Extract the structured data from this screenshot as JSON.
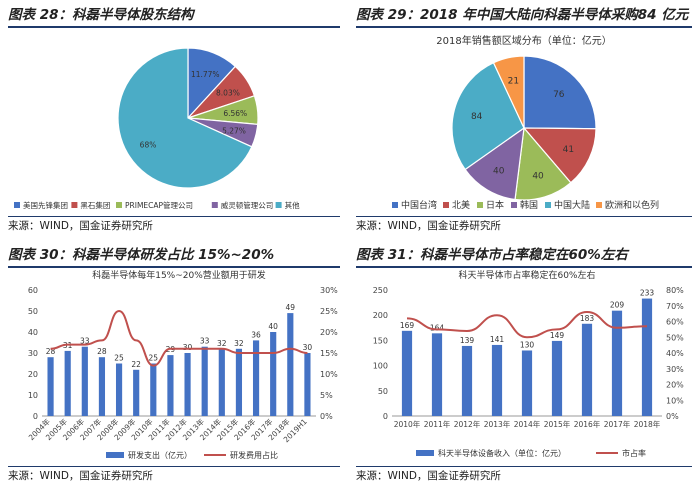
{
  "colors": {
    "blue": "#4472c4",
    "red": "#c0504d",
    "green": "#9bbb59",
    "purple": "#8064a2",
    "teal": "#4bacc6",
    "orange": "#f79646",
    "line": "#c0504d"
  },
  "panels": {
    "p1": {
      "title": "图表 28：科磊半导体股东结构",
      "source": "来源：WIND，国金证券研究所"
    },
    "p2": {
      "title": "图表 29：2018 年中国大陆向科磊半导体采购84 亿元",
      "source": "来源：WIND，国金证券研究所"
    },
    "p3": {
      "title": "图表 30：科磊半导体研发占比 15%~20%",
      "source": "来源：WIND，国金证券研究所"
    },
    "p4": {
      "title": "图表 31：科磊半导体市占率稳定在60%左右",
      "source": "来源：WIND，国金证券研究所"
    }
  },
  "chart_data": [
    {
      "type": "pie",
      "title": "",
      "labels": [
        "美国先锋集团",
        "黑石集团",
        "PRIMECAP管理公司",
        "威灵顿管理公司",
        "其他"
      ],
      "values": [
        11.77,
        8.03,
        6.56,
        5.27,
        68
      ],
      "value_labels": [
        "11.77%",
        "8.03%",
        "6.56%",
        "5.27%",
        "68%"
      ],
      "colors": [
        "#4472c4",
        "#c0504d",
        "#9bbb59",
        "#8064a2",
        "#4bacc6"
      ],
      "legend": "bottom"
    },
    {
      "type": "pie",
      "title": "2018年销售额区域分布（单位：亿元）",
      "labels": [
        "中国台湾",
        "北美",
        "日本",
        "韩国",
        "中国大陆",
        "欧洲和以色列"
      ],
      "values": [
        76,
        41,
        40,
        40,
        84,
        21
      ],
      "colors": [
        "#4472c4",
        "#c0504d",
        "#9bbb59",
        "#8064a2",
        "#4bacc6",
        "#f79646"
      ],
      "legend": "bottom"
    },
    {
      "type": "bar",
      "title": "科磊半导体每年15%~20%营业额用于研发",
      "categories": [
        "2004年",
        "2005年",
        "2006年",
        "2007年",
        "2008年",
        "2009年",
        "2010年",
        "2011年",
        "2012年",
        "2013年",
        "2014年",
        "2015年",
        "2016年",
        "2017年",
        "2018年",
        "2019H1"
      ],
      "series": [
        {
          "name": "研发支出（亿元）",
          "type": "bar",
          "axis": "left",
          "values": [
            28,
            31,
            33,
            28,
            25,
            22,
            25,
            29,
            30,
            33,
            32,
            32,
            36,
            40,
            49,
            30
          ]
        },
        {
          "name": "研发费用占比",
          "type": "line",
          "axis": "right",
          "values": [
            16,
            17,
            17,
            18,
            25,
            18,
            12,
            16,
            16,
            16,
            16,
            15,
            15,
            15,
            16,
            15
          ]
        }
      ],
      "ylim_left": [
        0,
        60
      ],
      "yticks_left": [
        0,
        10,
        20,
        30,
        40,
        50,
        60
      ],
      "ylim_right": [
        0,
        30
      ],
      "yticks_right": [
        "0%",
        "5%",
        "10%",
        "15%",
        "20%",
        "25%",
        "30%"
      ],
      "legend": "bottom"
    },
    {
      "type": "bar",
      "title": "科天半导体市占率稳定在60%左右",
      "categories": [
        "2010年",
        "2011年",
        "2012年",
        "2013年",
        "2014年",
        "2015年",
        "2016年",
        "2017年",
        "2018年"
      ],
      "series": [
        {
          "name": "科天半导体设备收入（单位：亿元）",
          "type": "bar",
          "axis": "left",
          "values": [
            169,
            164,
            139,
            141,
            130,
            149,
            183,
            209,
            233
          ]
        },
        {
          "name": "市占率",
          "type": "line",
          "axis": "right",
          "values": [
            62,
            55,
            54,
            64,
            50,
            55,
            66,
            56,
            57
          ]
        }
      ],
      "ylim_left": [
        0,
        250
      ],
      "yticks_left": [
        0,
        50,
        100,
        150,
        200,
        250
      ],
      "ylim_right": [
        0,
        80
      ],
      "yticks_right": [
        "0%",
        "10%",
        "20%",
        "30%",
        "40%",
        "50%",
        "60%",
        "70%",
        "80%"
      ],
      "legend": "bottom"
    }
  ]
}
